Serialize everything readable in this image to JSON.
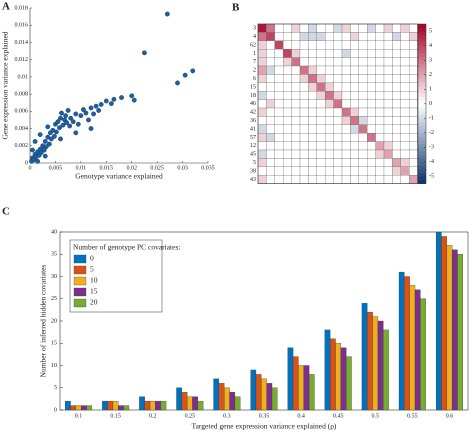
{
  "chart_data": [
    {
      "type": "scatter",
      "panel_label": "A",
      "xlabel": "Genotype variance explained",
      "ylabel": "Gene expression variance explained",
      "color": "#1f5f9e",
      "xlim": [
        0,
        0.035
      ],
      "ylim": [
        0,
        0.018
      ],
      "xticks": [
        0,
        0.005,
        0.01,
        0.015,
        0.02,
        0.025,
        0.03,
        0.035
      ],
      "yticks": [
        0,
        0.002,
        0.004,
        0.006,
        0.008,
        0.01,
        0.012,
        0.014,
        0.016,
        0.018
      ],
      "x": [
        0.0003,
        0.0005,
        0.0008,
        0.001,
        0.0012,
        0.0015,
        0.0018,
        0.002,
        0.0022,
        0.0025,
        0.0028,
        0.003,
        0.0032,
        0.0035,
        0.0038,
        0.004,
        0.0042,
        0.0045,
        0.0048,
        0.005,
        0.0052,
        0.0055,
        0.0058,
        0.006,
        0.0062,
        0.0065,
        0.0068,
        0.007,
        0.0072,
        0.0075,
        0.0078,
        0.008,
        0.0085,
        0.009,
        0.0095,
        0.01,
        0.0105,
        0.011,
        0.0115,
        0.012,
        0.0125,
        0.013,
        0.0135,
        0.014,
        0.015,
        0.016,
        0.0165,
        0.018,
        0.02,
        0.0205,
        0.0225,
        0.027,
        0.029,
        0.0305,
        0.032,
        0.001,
        0.002,
        0.0035,
        0.0005,
        0.0015,
        0.003,
        0.006,
        0.009,
        0.012
      ],
      "values": [
        0.0002,
        0.0006,
        0.0004,
        0.001,
        0.0007,
        0.0013,
        0.0009,
        0.0016,
        0.0012,
        0.002,
        0.0015,
        0.0025,
        0.0019,
        0.003,
        0.0022,
        0.0035,
        0.0028,
        0.0038,
        0.0031,
        0.0045,
        0.0036,
        0.0048,
        0.0041,
        0.0052,
        0.0058,
        0.0044,
        0.005,
        0.0055,
        0.0047,
        0.0061,
        0.0043,
        0.0052,
        0.0048,
        0.0057,
        0.0045,
        0.0055,
        0.0062,
        0.0058,
        0.005,
        0.0064,
        0.0057,
        0.0066,
        0.0061,
        0.0068,
        0.0072,
        0.0069,
        0.0074,
        0.0076,
        0.0078,
        0.0073,
        0.0128,
        0.0173,
        0.0093,
        0.0102,
        0.0107,
        0.0025,
        0.0033,
        0.0042,
        0.0015,
        0.0002,
        0.0008,
        0.0028,
        0.0035,
        0.004
      ]
    },
    {
      "type": "heatmap",
      "panel_label": "B",
      "categories": [
        "3",
        "4",
        "62",
        "1",
        "7",
        "2",
        "6",
        "15",
        "18",
        "46",
        "42",
        "36",
        "41",
        "57",
        "12",
        "45",
        "5",
        "38",
        "43"
      ],
      "clim": [
        -5.5,
        5.5
      ],
      "cticks": [
        5,
        4,
        3,
        2,
        1,
        0,
        -1,
        -2,
        -3,
        -4,
        -5
      ],
      "values": [
        [
          5,
          3,
          0,
          0,
          1,
          0,
          -1,
          0,
          0,
          -1,
          1,
          0,
          0,
          -1,
          0,
          1,
          0,
          1,
          0
        ],
        [
          3,
          4,
          0,
          0,
          0,
          -1,
          -1,
          -1,
          0,
          0,
          0,
          1,
          0,
          0,
          0,
          0,
          -1,
          0,
          1
        ],
        [
          1,
          0,
          4,
          0,
          0,
          0,
          0,
          0,
          0,
          0,
          0,
          0,
          0,
          0,
          0,
          0,
          0,
          0,
          0
        ],
        [
          1,
          0,
          0,
          4,
          1,
          0,
          0,
          0,
          0,
          0,
          -1,
          0,
          0,
          0,
          0,
          0,
          0,
          0,
          0
        ],
        [
          1,
          0,
          0,
          1,
          3,
          0,
          0,
          0,
          0,
          0,
          0,
          0,
          0,
          0,
          0,
          0,
          0,
          0,
          0
        ],
        [
          2,
          -1,
          0,
          0,
          0,
          3,
          1,
          0,
          0,
          0,
          0,
          0,
          0,
          0,
          0,
          0,
          0,
          0,
          0
        ],
        [
          1,
          0,
          0,
          0,
          0,
          1,
          3,
          1,
          0,
          0,
          0,
          0,
          0,
          0,
          0,
          0,
          0,
          0,
          0
        ],
        [
          0,
          0,
          0,
          0,
          0,
          0,
          1,
          3,
          1,
          0,
          0,
          0,
          0,
          0,
          0,
          0,
          0,
          0,
          0
        ],
        [
          -1,
          0,
          0,
          0,
          0,
          0,
          0,
          1,
          3,
          1,
          0,
          0,
          0,
          0,
          0,
          0,
          0,
          0,
          0
        ],
        [
          0,
          1,
          0,
          0,
          0,
          0,
          0,
          0,
          1,
          3,
          0,
          0,
          0,
          0,
          0,
          0,
          0,
          0,
          0
        ],
        [
          1,
          0,
          0,
          0,
          0,
          0,
          0,
          0,
          0,
          0,
          3,
          1,
          0,
          0,
          0,
          0,
          0,
          0,
          0
        ],
        [
          0,
          0,
          0,
          0,
          0,
          0,
          0,
          0,
          0,
          0,
          1,
          3,
          -1,
          0,
          0,
          0,
          0,
          0,
          0
        ],
        [
          -1,
          0,
          0,
          0,
          0,
          0,
          0,
          0,
          0,
          0,
          0,
          -1,
          3,
          0,
          0,
          0,
          0,
          0,
          0
        ],
        [
          1,
          -1,
          0,
          0,
          0,
          0,
          0,
          0,
          0,
          0,
          0,
          0,
          0,
          3,
          0,
          0,
          0,
          0,
          0
        ],
        [
          0,
          0,
          0,
          0,
          0,
          0,
          0,
          0,
          0,
          0,
          0,
          0,
          0,
          0,
          2,
          1,
          0,
          0,
          0
        ],
        [
          -1,
          0,
          0,
          0,
          0,
          0,
          0,
          0,
          0,
          0,
          0,
          0,
          0,
          0,
          1,
          2,
          0,
          0,
          0
        ],
        [
          1,
          0,
          0,
          0,
          0,
          0,
          0,
          0,
          0,
          0,
          0,
          0,
          0,
          0,
          0,
          0,
          2,
          1,
          0
        ],
        [
          0,
          0,
          0,
          0,
          0,
          0,
          0,
          0,
          0,
          0,
          0,
          0,
          0,
          0,
          0,
          0,
          1,
          2,
          0
        ],
        [
          1,
          0,
          0,
          0,
          0,
          0,
          0,
          0,
          0,
          0,
          0,
          0,
          0,
          0,
          0,
          0,
          0,
          0,
          2
        ]
      ]
    },
    {
      "type": "bar",
      "panel_label": "C",
      "xlabel": "Targeted gene expression variance explained (ρ)",
      "ylabel": "Number of inferred hidden covariates",
      "legend_title": "Number of genotype PC covariates:",
      "categories": [
        "0.1",
        "0.15",
        "0.2",
        "0.25",
        "0.3",
        "0.35",
        "0.4",
        "0.45",
        "0.5",
        "0.55",
        "0.6"
      ],
      "ylim": [
        0,
        40
      ],
      "yticks": [
        0,
        5,
        10,
        15,
        20,
        25,
        30,
        35,
        40
      ],
      "series": [
        {
          "name": "0",
          "color": "#0072bd",
          "values": [
            2,
            2,
            3,
            5,
            7,
            9,
            14,
            18,
            24,
            31,
            40
          ]
        },
        {
          "name": "5",
          "color": "#d95319",
          "values": [
            1,
            2,
            2,
            4,
            6,
            8,
            12,
            16,
            22,
            30,
            39
          ]
        },
        {
          "name": "10",
          "color": "#edb120",
          "values": [
            1,
            2,
            2,
            3,
            5,
            7,
            10,
            15,
            21,
            28,
            37
          ]
        },
        {
          "name": "15",
          "color": "#7e2f8e",
          "values": [
            1,
            1,
            2,
            3,
            4,
            6,
            10,
            14,
            20,
            27,
            36
          ]
        },
        {
          "name": "20",
          "color": "#77ac30",
          "values": [
            1,
            1,
            2,
            2,
            3,
            5,
            8,
            12,
            18,
            25,
            35
          ]
        }
      ]
    }
  ]
}
